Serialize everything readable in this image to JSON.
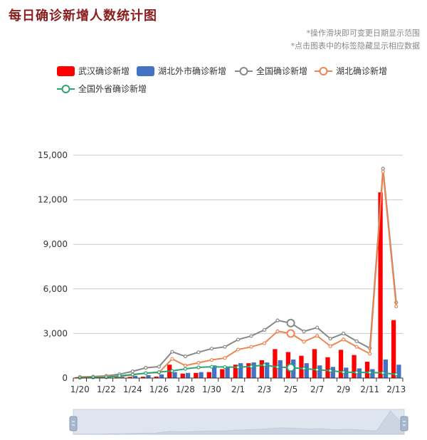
{
  "title": "每日确诊新增人数统计图",
  "hints": [
    "*操作滑块即可变更日期显示范围",
    "*点击图表中的标签隐藏显示相应数据"
  ],
  "chart_data": {
    "type": "bar+line",
    "dates": [
      "1/20",
      "1/21",
      "1/22",
      "1/23",
      "1/24",
      "1/25",
      "1/26",
      "1/27",
      "1/28",
      "1/29",
      "1/30",
      "1/31",
      "2/1",
      "2/2",
      "2/3",
      "2/4",
      "2/5",
      "2/6",
      "2/7",
      "2/8",
      "2/9",
      "2/10",
      "2/11",
      "2/12",
      "2/13"
    ],
    "x_tick_labels": [
      "1/20",
      "1/22",
      "1/24",
      "1/26",
      "1/28",
      "1/30",
      "2/1",
      "2/3",
      "2/5",
      "2/7",
      "2/9",
      "2/11",
      "2/13"
    ],
    "ylim": [
      0,
      15000
    ],
    "y_ticks": [
      0,
      3000,
      6000,
      9000,
      12000,
      15000
    ],
    "y_tick_labels": [
      "0",
      "3,000",
      "6,000",
      "9,000",
      "12,000",
      "15,000"
    ],
    "legend_position": "top-left",
    "grid": true,
    "series": [
      {
        "name": "武汉确诊新增",
        "kind": "bar",
        "color": "#ff0000",
        "values": [
          60,
          20,
          70,
          60,
          80,
          90,
          100,
          900,
          300,
          350,
          400,
          600,
          900,
          1000,
          1200,
          1950,
          1750,
          1500,
          1950,
          1400,
          1900,
          1550,
          1100,
          12500,
          3900
        ]
      },
      {
        "name": "湖北外市确诊新增",
        "kind": "bar",
        "color": "#4472c4",
        "values": [
          10,
          20,
          40,
          80,
          150,
          200,
          250,
          400,
          350,
          400,
          850,
          750,
          1000,
          1050,
          1050,
          1200,
          1250,
          1000,
          850,
          750,
          700,
          650,
          600,
          1250,
          900
        ]
      },
      {
        "name": "全国确诊新增",
        "kind": "line",
        "color": "#888888",
        "values": [
          80,
          100,
          150,
          260,
          450,
          690,
          770,
          1770,
          1460,
          1740,
          1980,
          2100,
          2590,
          2830,
          3240,
          3880,
          3700,
          3140,
          3400,
          2650,
          3000,
          2480,
          2010,
          14100,
          5090
        ]
      },
      {
        "name": "湖北确诊新增",
        "kind": "line",
        "color": "#ee8550",
        "values": [
          70,
          60,
          110,
          100,
          220,
          330,
          370,
          1290,
          840,
          1030,
          1220,
          1350,
          1920,
          2100,
          2350,
          3150,
          3000,
          2450,
          2840,
          2150,
          2600,
          2100,
          1640,
          13900,
          4820
        ]
      },
      {
        "name": "全国外省确诊新增",
        "kind": "line",
        "color": "#2aa56e",
        "values": [
          20,
          40,
          50,
          150,
          240,
          330,
          400,
          480,
          620,
          720,
          760,
          740,
          730,
          780,
          880,
          740,
          700,
          640,
          560,
          500,
          400,
          380,
          370,
          350,
          250
        ]
      }
    ],
    "highlighted_points": [
      {
        "series": "全国确诊新增",
        "index": 16
      },
      {
        "series": "湖北确诊新增",
        "index": 16
      },
      {
        "series": "全国外省确诊新增",
        "index": 16
      }
    ],
    "slider_range": [
      0,
      1
    ]
  }
}
